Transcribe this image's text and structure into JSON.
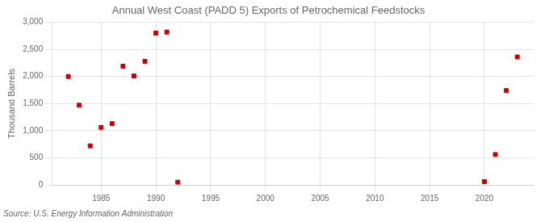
{
  "chart_data": {
    "type": "scatter",
    "title": "Annual West Coast (PADD 5) Exports of Petrochemical Feedstocks",
    "ylabel": "Thousand Barrels",
    "source": "Source: U.S. Energy Information Administration",
    "x": [
      1982,
      1983,
      1984,
      1985,
      1986,
      1987,
      1988,
      1989,
      1990,
      1991,
      1992,
      2020,
      2021,
      2022,
      2023
    ],
    "values": [
      2000,
      1470,
      720,
      1060,
      1130,
      2190,
      2010,
      2280,
      2800,
      2820,
      50,
      60,
      560,
      1740,
      2360
    ],
    "color": "#cc0000",
    "marker": "square",
    "xlim": [
      1980.5,
      2024.5
    ],
    "xticks": [
      1985,
      1990,
      1995,
      2000,
      2005,
      2010,
      2015,
      2020
    ],
    "ylim": [
      0,
      3000
    ],
    "yticks": [
      0,
      500,
      {
        "value": 1000,
        "label": "1,000"
      },
      {
        "value": 1500,
        "label": "1,500"
      },
      {
        "value": 2000,
        "label": "2,000"
      },
      {
        "value": 2500,
        "label": "2,500"
      },
      {
        "value": 3000,
        "label": "3,000"
      }
    ],
    "grid": true
  }
}
